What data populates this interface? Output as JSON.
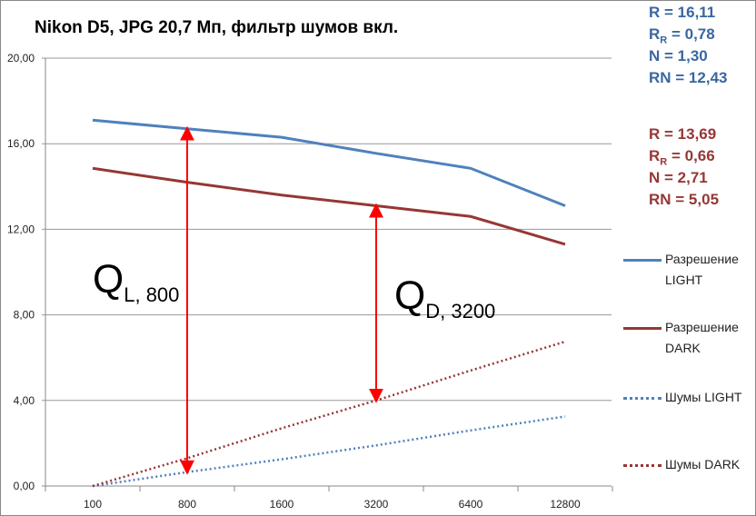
{
  "chart_data": {
    "type": "line",
    "title": "Nikon D5, JPG 20,7 Мп, фильтр шумов вкл.",
    "categories": [
      "100",
      "800",
      "1600",
      "3200",
      "6400",
      "12800"
    ],
    "ylim": [
      0,
      20
    ],
    "yticks": [
      "0,00",
      "4,00",
      "8,00",
      "12,00",
      "16,00",
      "20,00"
    ],
    "grid": true,
    "legend_position": "right",
    "series": [
      {
        "name": "Разрешение LIGHT",
        "name_lines": [
          "Разрешение",
          "LIGHT"
        ],
        "color": "#4f81bd",
        "style": "solid",
        "values": [
          17.1,
          16.7,
          16.3,
          15.55,
          14.85,
          13.1
        ]
      },
      {
        "name": "Разрешение DARK",
        "name_lines": [
          "Разрешение",
          "DARK"
        ],
        "color": "#953735",
        "style": "solid",
        "values": [
          14.85,
          14.2,
          13.6,
          13.1,
          12.6,
          11.3
        ]
      },
      {
        "name": "Шумы LIGHT",
        "name_lines": [
          "Шумы LIGHT"
        ],
        "color": "#4f81bd",
        "style": "dotted",
        "values": [
          0,
          0.65,
          1.25,
          1.9,
          2.6,
          3.25
        ]
      },
      {
        "name": "Шумы DARK",
        "name_lines": [
          "Шумы DARK"
        ],
        "color": "#953735",
        "style": "dotted",
        "values": [
          0,
          1.3,
          2.7,
          4.0,
          5.4,
          6.75
        ]
      }
    ],
    "annotations": [
      {
        "label": "Q",
        "sub": "L, 800",
        "category": "800",
        "from": 0.65,
        "to": 16.7
      },
      {
        "label": "Q",
        "sub": "D, 3200",
        "category": "3200",
        "from": 4.0,
        "to": 13.1
      }
    ],
    "stats_light": [
      {
        "k": "R",
        "s": "",
        "v": "= 16,11"
      },
      {
        "k": "R",
        "s": "R",
        "v": "= 0,78"
      },
      {
        "k": "N",
        "s": "",
        "v": "= 1,30"
      },
      {
        "k": "RN",
        "s": "",
        "v": "= 12,43"
      }
    ],
    "stats_dark": [
      {
        "k": "R",
        "s": "",
        "v": "= 13,69"
      },
      {
        "k": "R",
        "s": "R",
        "v": "= 0,66"
      },
      {
        "k": "N",
        "s": "",
        "v": "= 2,71"
      },
      {
        "k": "RN",
        "s": "",
        "v": "= 5,05"
      }
    ]
  }
}
